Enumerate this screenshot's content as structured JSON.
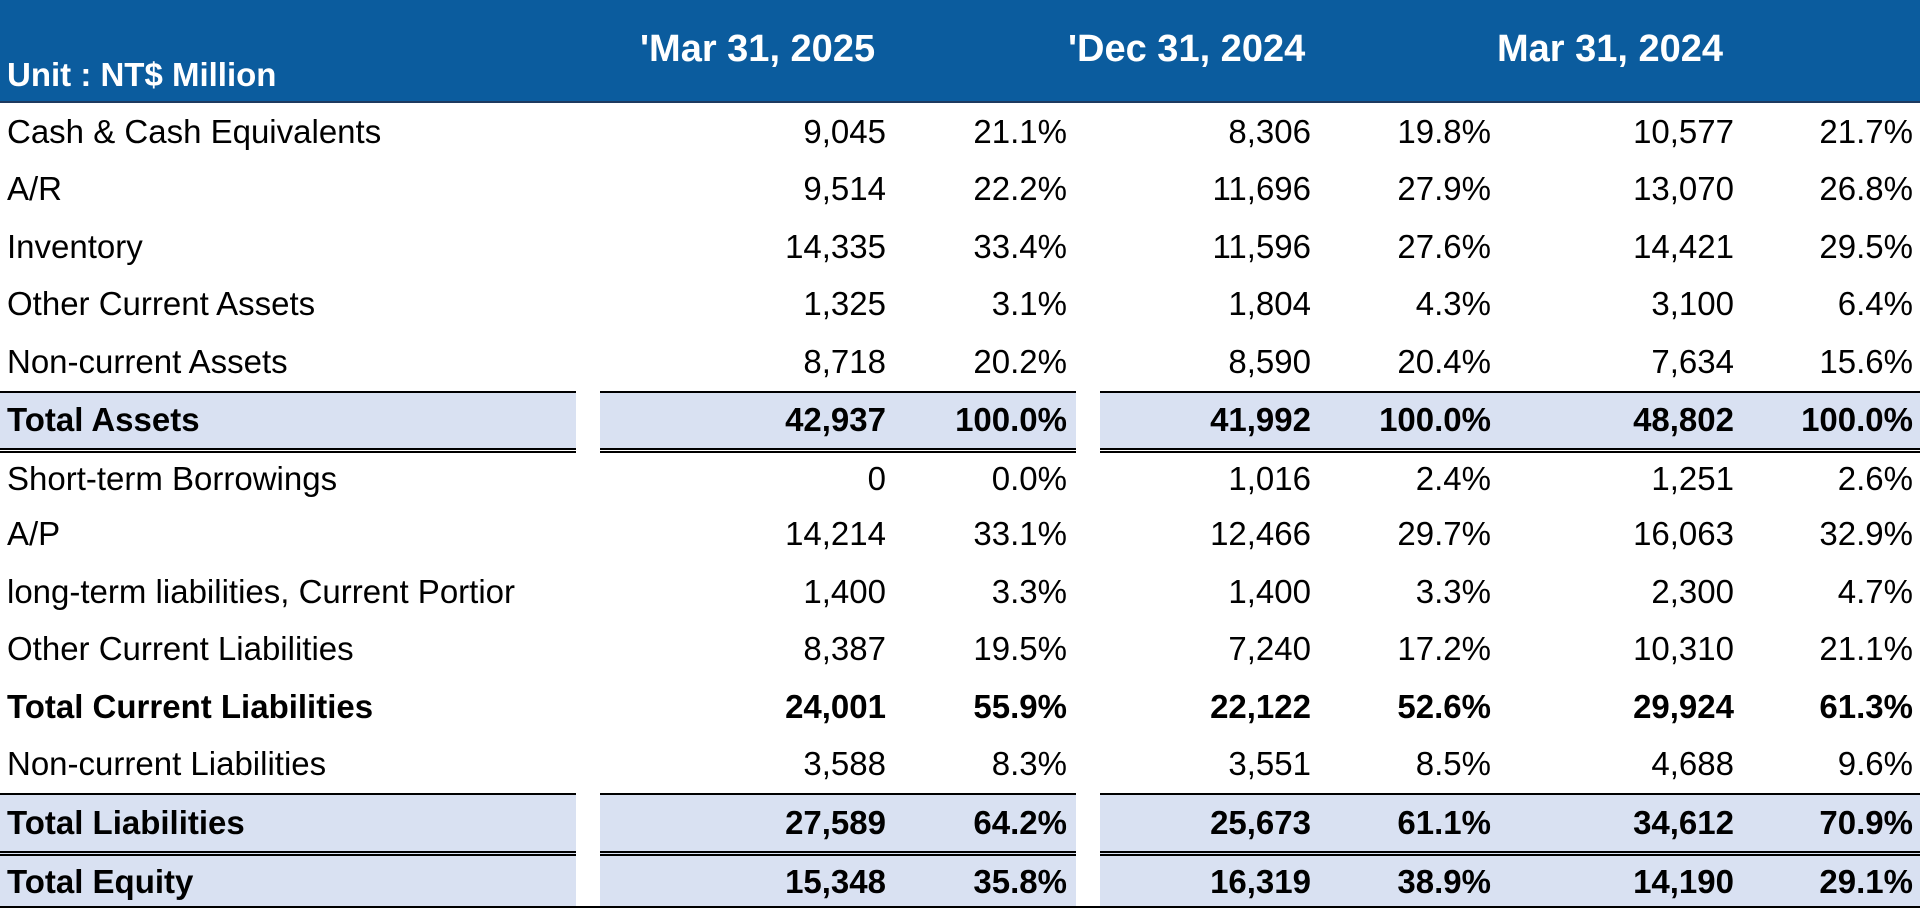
{
  "header": {
    "unit": "Unit : NT$ Million",
    "periods": [
      "'Mar 31, 2025",
      "'Dec 31, 2024",
      "Mar 31, 2024"
    ]
  },
  "rows": [
    {
      "label": "Cash & Cash Equivalents",
      "values": [
        "9,045",
        "21.1%",
        "8,306",
        "19.8%",
        "10,577",
        "21.7%"
      ],
      "style": "normal"
    },
    {
      "label": "A/R",
      "values": [
        "9,514",
        "22.2%",
        "11,696",
        "27.9%",
        "13,070",
        "26.8%"
      ],
      "style": "normal"
    },
    {
      "label": "Inventory",
      "values": [
        "14,335",
        "33.4%",
        "11,596",
        "27.6%",
        "14,421",
        "29.5%"
      ],
      "style": "normal"
    },
    {
      "label": "Other Current Assets",
      "values": [
        "1,325",
        "3.1%",
        "1,804",
        "4.3%",
        "3,100",
        "6.4%"
      ],
      "style": "normal"
    },
    {
      "label": "Non-current Assets",
      "values": [
        "8,718",
        "20.2%",
        "8,590",
        "20.4%",
        "7,634",
        "15.6%"
      ],
      "style": "normal"
    },
    {
      "label": "Total Assets",
      "values": [
        "42,937",
        "100.0%",
        "41,992",
        "100.0%",
        "48,802",
        "100.0%"
      ],
      "style": "total"
    },
    {
      "label": "Short-term Borrowings",
      "values": [
        "0",
        "0.0%",
        "1,016",
        "2.4%",
        "1,251",
        "2.6%"
      ],
      "style": "after-total"
    },
    {
      "label": "A/P",
      "values": [
        "14,214",
        "33.1%",
        "12,466",
        "29.7%",
        "16,063",
        "32.9%"
      ],
      "style": "normal"
    },
    {
      "label": "long-term liabilities, Current Portior",
      "values": [
        "1,400",
        "3.3%",
        "1,400",
        "3.3%",
        "2,300",
        "4.7%"
      ],
      "style": "normal"
    },
    {
      "label": "Other Current Liabilities",
      "values": [
        "8,387",
        "19.5%",
        "7,240",
        "17.2%",
        "10,310",
        "21.1%"
      ],
      "style": "normal"
    },
    {
      "label": "Total Current Liabilities",
      "values": [
        "24,001",
        "55.9%",
        "22,122",
        "52.6%",
        "29,924",
        "61.3%"
      ],
      "style": "bold"
    },
    {
      "label": "Non-current Liabilities",
      "values": [
        "3,588",
        "8.3%",
        "3,551",
        "8.5%",
        "4,688",
        "9.6%"
      ],
      "style": "normal"
    },
    {
      "label": "Total Liabilities",
      "values": [
        "27,589",
        "64.2%",
        "25,673",
        "61.1%",
        "34,612",
        "70.9%"
      ],
      "style": "total"
    },
    {
      "label": "Total Equity",
      "values": [
        "15,348",
        "35.8%",
        "16,319",
        "38.9%",
        "14,190",
        "29.1%"
      ],
      "style": "total-double"
    }
  ],
  "colors": {
    "header_bg": "#0b5c9e",
    "total_bg": "#d9e1f2"
  }
}
